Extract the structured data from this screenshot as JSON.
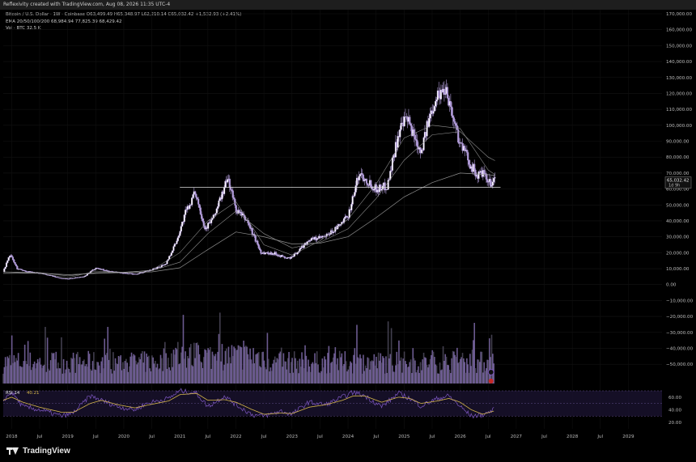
{
  "header": {
    "attribution": "Reflexivity created with TradingView.com, Aug 08, 2026 11:35 UTC-4"
  },
  "legend": {
    "symbol": "Bitcoin / U.S. Dollar · 1W · Coinbase",
    "ohlc": "O63,499.49 H65,348.97 L62,210.14 C65,032.42 +1,532.93 (+2.41%)",
    "ema": "EMA 20/50/100/200 68,984.94 77,825.39 68,429.42",
    "vol": "Vol · BTC 32.5 K",
    "rsi_label": "RSI 14",
    "rsi_value": "40.21"
  },
  "brand": {
    "name": "TradingView"
  },
  "colors": {
    "background": "#000000",
    "candle": "#b39ddb",
    "volume": "#7e6aa8",
    "rsi": "#7e57c2",
    "rsi_ma": "#d4b64a",
    "ema": "#9e9e9e",
    "support_line": "#e0e0e0"
  },
  "chart_data": {
    "type": "candlestick",
    "title": "Bitcoin / U.S. Dollar · 1W · Coinbase",
    "price_axis": {
      "ylim": [
        -55000,
        170000
      ],
      "ticks": [
        170000,
        160000,
        150000,
        140000,
        130000,
        120000,
        110000,
        100000,
        90000,
        80000,
        70000,
        60000,
        50000,
        40000,
        30000,
        20000,
        10000,
        0,
        -10000,
        -20000,
        -30000,
        -40000,
        -50000
      ],
      "tick_labels": [
        "170,000.00",
        "160,000.00",
        "150,000.00",
        "140,000.00",
        "130,000.00",
        "120,000.00",
        "110,000.00",
        "100,000.00",
        "90,000.00",
        "80,000.00",
        "70,000.00",
        "60,000.00",
        "50,000.00",
        "40,000.00",
        "30,000.00",
        "20,000.00",
        "10,000.00",
        "0.00",
        "−10,000.00",
        "−20,000.00",
        "−30,000.00",
        "−40,000.00",
        "−50,000.00"
      ]
    },
    "current_price_label": "65,032.42",
    "countdown_label": "1d 9h",
    "support_level": 61000,
    "x_axis": {
      "range": [
        2017.85,
        2029.6
      ],
      "ticks": [
        2018,
        2018.5,
        2019,
        2019.5,
        2020,
        2020.5,
        2021,
        2021.5,
        2022,
        2022.5,
        2023,
        2023.5,
        2024,
        2024.5,
        2025,
        2025.5,
        2026,
        2026.5,
        2027,
        2027.5,
        2028,
        2028.5,
        2029
      ],
      "tick_labels": [
        "2018",
        "Jul",
        "2019",
        "Jul",
        "2020",
        "Jul",
        "2021",
        "Jul",
        "2022",
        "Jul",
        "2023",
        "Jul",
        "2024",
        "Jul",
        "2025",
        "Jul",
        "2026",
        "Jul",
        "2027",
        "Jul",
        "2028",
        "Jul",
        "2029"
      ]
    },
    "price_keypoints": {
      "t": [
        2017.85,
        2017.97,
        2018.1,
        2018.3,
        2018.6,
        2018.87,
        2019.0,
        2019.3,
        2019.5,
        2019.75,
        2020.0,
        2020.2,
        2020.5,
        2020.75,
        2020.95,
        2021.1,
        2021.28,
        2021.45,
        2021.6,
        2021.86,
        2022.0,
        2022.2,
        2022.45,
        2022.7,
        2022.9,
        2023.0,
        2023.3,
        2023.6,
        2023.85,
        2024.0,
        2024.2,
        2024.5,
        2024.7,
        2024.9,
        2025.05,
        2025.3,
        2025.55,
        2025.75,
        2025.87,
        2026.0,
        2026.15,
        2026.3,
        2026.4,
        2026.5,
        2026.6
      ],
      "price": [
        8000,
        19000,
        10000,
        8000,
        6500,
        4000,
        3600,
        5000,
        10500,
        8200,
        7200,
        6500,
        9200,
        13000,
        28000,
        45000,
        58000,
        35000,
        42000,
        67000,
        47000,
        40000,
        20000,
        19500,
        16500,
        17000,
        28000,
        30000,
        37000,
        43000,
        70000,
        60000,
        62000,
        95000,
        104000,
        84000,
        117000,
        124000,
        105000,
        89000,
        78000,
        68000,
        70000,
        63500,
        65000
      ]
    },
    "ema_lines": {
      "t": [
        2017.85,
        2018.5,
        2019.0,
        2019.5,
        2020.0,
        2020.5,
        2021.0,
        2021.5,
        2022.0,
        2022.5,
        2023.0,
        2023.5,
        2024.0,
        2024.5,
        2025.0,
        2025.5,
        2026.0,
        2026.5,
        2026.62
      ],
      "ema20": [
        8000,
        7000,
        4200,
        8500,
        7600,
        9000,
        20000,
        40000,
        52000,
        25000,
        18500,
        27500,
        41000,
        63000,
        92000,
        100000,
        98000,
        72000,
        68985
      ],
      "ema50": [
        8000,
        7500,
        5500,
        7500,
        7800,
        8800,
        14000,
        32000,
        46000,
        32000,
        23000,
        26500,
        35000,
        54000,
        78000,
        94000,
        96000,
        80000,
        77825
      ],
      "ema100": [
        7000,
        7200,
        6200,
        7000,
        7500,
        8000,
        10500,
        22000,
        33000,
        30000,
        25500,
        26000,
        30000,
        42000,
        55000,
        64000,
        70000,
        69000,
        68429
      ]
    },
    "volume_scale_max": 100,
    "rsi_panel": {
      "ylim": [
        10,
        70
      ],
      "ticks": [
        60,
        40,
        20
      ],
      "tick_labels": [
        "60.00",
        "40.00",
        "20.00"
      ],
      "t": [
        2017.85,
        2018.0,
        2018.2,
        2018.5,
        2018.9,
        2019.1,
        2019.4,
        2019.6,
        2019.9,
        2020.2,
        2020.4,
        2020.8,
        2021.0,
        2021.3,
        2021.5,
        2021.8,
        2022.0,
        2022.3,
        2022.5,
        2022.8,
        2023.0,
        2023.3,
        2023.6,
        2023.9,
        2024.1,
        2024.3,
        2024.6,
        2024.9,
        2025.1,
        2025.3,
        2025.6,
        2025.8,
        2026.0,
        2026.2,
        2026.4,
        2026.6
      ],
      "rsi": [
        55,
        68,
        45,
        40,
        30,
        35,
        62,
        55,
        45,
        40,
        50,
        58,
        70,
        66,
        45,
        62,
        48,
        32,
        30,
        38,
        33,
        52,
        48,
        60,
        68,
        62,
        45,
        66,
        58,
        46,
        58,
        62,
        45,
        30,
        32,
        40
      ],
      "rsi_ma": [
        55,
        60,
        52,
        44,
        36,
        36,
        50,
        55,
        48,
        43,
        47,
        54,
        64,
        66,
        55,
        56,
        52,
        40,
        33,
        35,
        34,
        44,
        48,
        55,
        62,
        62,
        52,
        60,
        58,
        50,
        54,
        58,
        52,
        40,
        33,
        38
      ]
    }
  }
}
